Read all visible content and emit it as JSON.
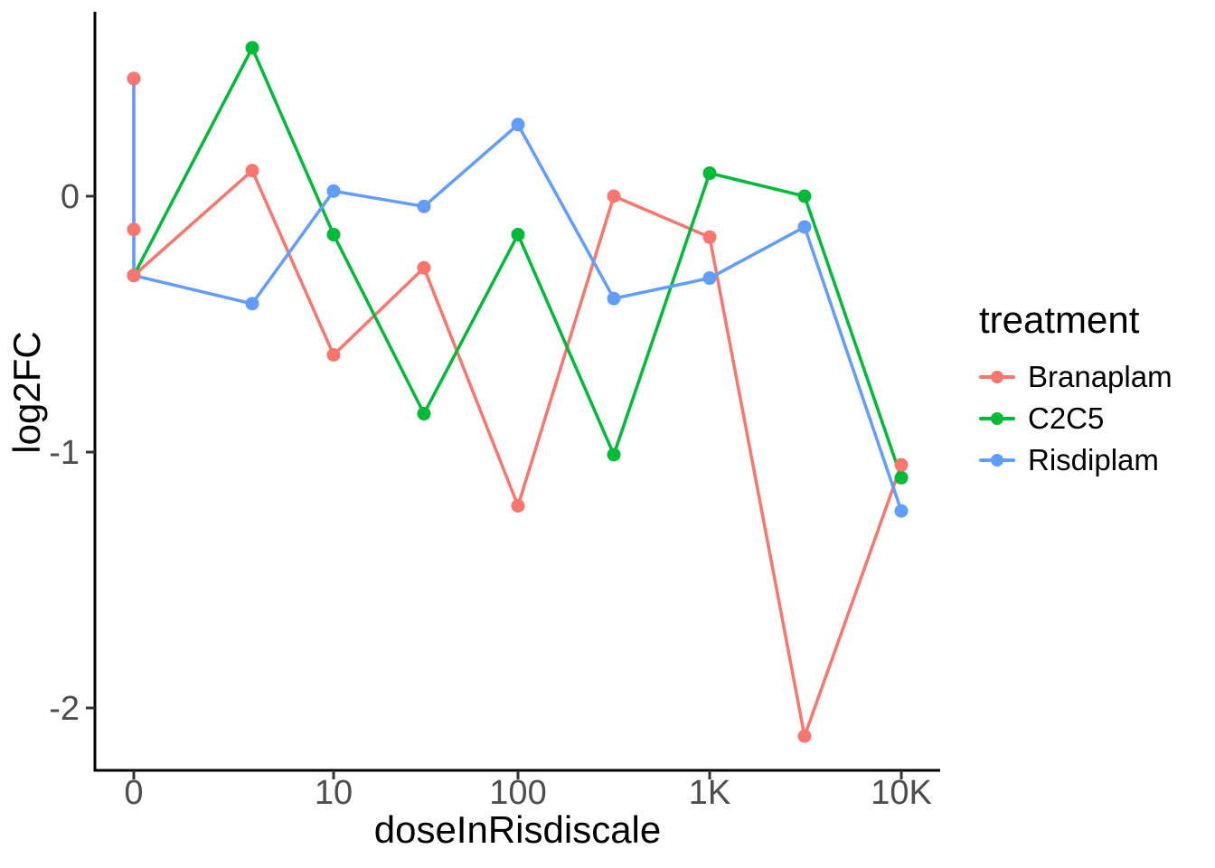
{
  "chart_data": {
    "type": "line",
    "title": "",
    "xlabel": "doseInRisdiscale",
    "ylabel": "log2FC",
    "x_scale": "log10 with zero at left end",
    "x_ticks": [
      {
        "value": 0,
        "label": "0"
      },
      {
        "value": 10,
        "label": "10"
      },
      {
        "value": 100,
        "label": "100"
      },
      {
        "value": 1000,
        "label": "1K"
      },
      {
        "value": 10000,
        "label": "10K"
      }
    ],
    "y_ticks": [
      {
        "value": 0,
        "label": "0"
      },
      {
        "value": -1,
        "label": "-1"
      },
      {
        "value": -2,
        "label": "-2"
      }
    ],
    "ylim": [
      -2.24,
      0.72
    ],
    "grid": "off",
    "legend_title": "treatment",
    "legend_position": "right",
    "series": [
      {
        "name": "Branaplam",
        "color": "#F8766D",
        "points": [
          {
            "x": 0,
            "y": 0.46
          },
          {
            "x": 0,
            "y": -0.13
          },
          {
            "x": 0,
            "y": -0.31
          },
          {
            "x": 4,
            "y": 0.1
          },
          {
            "x": 10,
            "y": -0.62
          },
          {
            "x": 30,
            "y": -0.28
          },
          {
            "x": 100,
            "y": -1.21
          },
          {
            "x": 300,
            "y": 0.0
          },
          {
            "x": 1000,
            "y": -0.16
          },
          {
            "x": 3000,
            "y": -2.11
          },
          {
            "x": 10000,
            "y": -1.05
          }
        ]
      },
      {
        "name": "C2C5",
        "color": "#00BA38",
        "points": [
          {
            "x": 0,
            "y": -0.31
          },
          {
            "x": 4,
            "y": 0.58
          },
          {
            "x": 10,
            "y": -0.15
          },
          {
            "x": 30,
            "y": -0.85
          },
          {
            "x": 100,
            "y": -0.15
          },
          {
            "x": 300,
            "y": -1.01
          },
          {
            "x": 1000,
            "y": 0.09
          },
          {
            "x": 3000,
            "y": 0.0
          },
          {
            "x": 10000,
            "y": -1.1
          }
        ]
      },
      {
        "name": "Risdiplam",
        "color": "#619CFF",
        "points": [
          {
            "x": 0,
            "y": 0.46
          },
          {
            "x": 0,
            "y": -0.31
          },
          {
            "x": 4,
            "y": -0.42
          },
          {
            "x": 10,
            "y": 0.02
          },
          {
            "x": 30,
            "y": -0.04
          },
          {
            "x": 100,
            "y": 0.28
          },
          {
            "x": 300,
            "y": -0.4
          },
          {
            "x": 1000,
            "y": -0.32
          },
          {
            "x": 3000,
            "y": -0.12
          },
          {
            "x": 10000,
            "y": -1.23
          }
        ]
      }
    ],
    "style": {
      "axis_color": "#000000",
      "tick_label_color": "#4D4D4D",
      "background": "#FFFFFF"
    }
  }
}
